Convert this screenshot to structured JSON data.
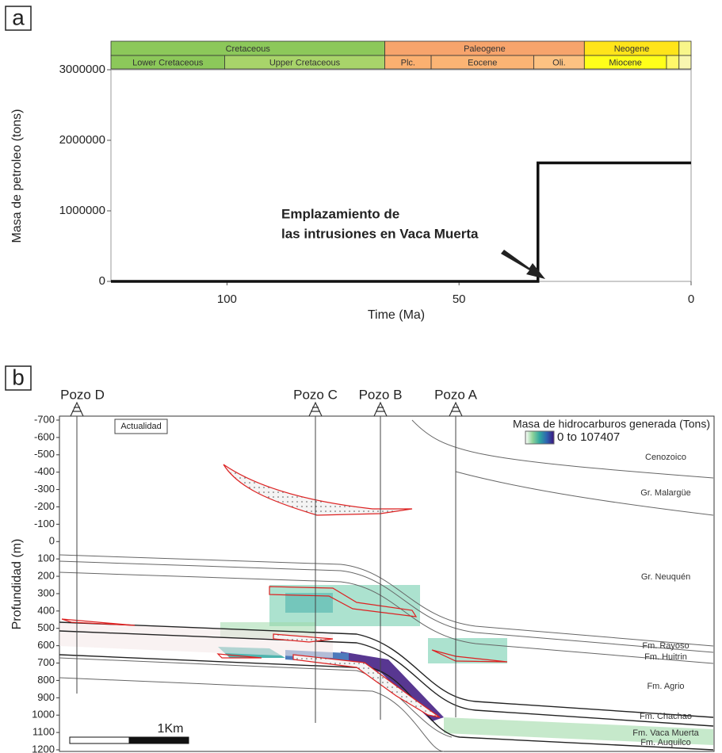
{
  "chart_data": [
    {
      "type": "step-line",
      "panel": "a",
      "xlabel": "Time (Ma)",
      "ylabel": "Masa de petroleo (tons)",
      "x": [
        125,
        33,
        33,
        0
      ],
      "values": [
        0,
        0,
        1680000,
        1680000
      ],
      "color": "#111111",
      "xlim": [
        125,
        0
      ],
      "xticks": [
        100,
        50,
        0
      ],
      "ylim": [
        0,
        3000000
      ],
      "yticks": [
        0,
        1000000,
        2000000,
        3000000
      ],
      "annotation": [
        "Emplazamiento de",
        "las intrusiones en Vaca Muerta"
      ],
      "timescale": {
        "periods": [
          {
            "name": "Cretaceous",
            "start": 125,
            "end": 66,
            "color": "#8cc85a"
          },
          {
            "name": "Paleogene",
            "start": 66,
            "end": 23,
            "color": "#f7a46c"
          },
          {
            "name": "Neogene",
            "start": 23,
            "end": 2.6,
            "color": "#ffe41a"
          },
          {
            "name": null,
            "start": 2.6,
            "end": 0,
            "color": "#f8f68a"
          }
        ],
        "epochs": [
          {
            "name": "Lower Cretaceous",
            "start": 125,
            "end": 100.5,
            "color": "#8cc85a"
          },
          {
            "name": "Upper Cretaceous",
            "start": 100.5,
            "end": 66,
            "color": "#a8d46a"
          },
          {
            "name": "Plc.",
            "start": 66,
            "end": 56,
            "color": "#fbb070"
          },
          {
            "name": "Eocene",
            "start": 56,
            "end": 33.9,
            "color": "#fbb474"
          },
          {
            "name": "Oli.",
            "start": 33.9,
            "end": 23,
            "color": "#fdc282"
          },
          {
            "name": "Miocene",
            "start": 23,
            "end": 5.3,
            "color": "#ffff1a"
          },
          {
            "name": null,
            "start": 5.3,
            "end": 2.6,
            "color": "#fff86a"
          },
          {
            "name": null,
            "start": 2.6,
            "end": 0,
            "color": "#f8f6b0"
          }
        ]
      }
    },
    {
      "type": "cross-section",
      "panel": "b",
      "ylabel": "Profundidad (m)",
      "ylim": [
        -700,
        1200
      ],
      "yticks": [
        -700,
        -600,
        -500,
        -400,
        -300,
        -200,
        -100,
        0,
        100,
        200,
        300,
        400,
        500,
        600,
        700,
        800,
        900,
        1000,
        1100,
        1200
      ],
      "wells": [
        "Pozo D",
        "Pozo C",
        "Pozo B",
        "Pozo A"
      ],
      "time_label": "Actualidad",
      "legend": {
        "title": "Masa de hidrocarburos generada (Tons)",
        "range_label": "0 to 107407",
        "colors": [
          "#ffffff",
          "#8fd39a",
          "#2fa7a0",
          "#2e63b0",
          "#3a147e"
        ]
      },
      "formations": [
        "Cenozoico",
        "Gr. Malargüe",
        "Gr. Neuquén",
        "Fm. Rayoso",
        "Fm. Huitrin",
        "Fm. Agrio",
        "Fm. Chachao",
        "Fm. Vaca Muerta",
        "Fm. Auquilco"
      ],
      "scale_label": "1Km"
    }
  ]
}
